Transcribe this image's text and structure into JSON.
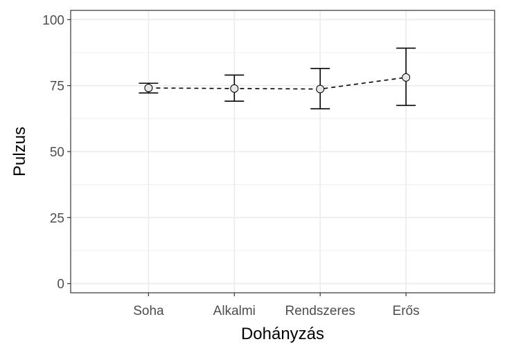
{
  "chart_data": {
    "type": "line",
    "title": "",
    "xlabel": "Dohányzás",
    "ylabel": "Pulzus",
    "categories": [
      "Soha",
      "Alkalmi",
      "Rendszeres",
      "Erős"
    ],
    "series": [
      {
        "values": [
          74.1,
          73.9,
          73.7,
          78.1
        ],
        "error_low": [
          72.2,
          69.1,
          66.2,
          67.5
        ],
        "error_high": [
          75.9,
          79.0,
          81.5,
          89.2
        ]
      }
    ],
    "ylim": [
      -3.5,
      103.5
    ],
    "yticks": [
      0,
      25,
      50,
      75,
      100
    ],
    "grid": true,
    "legend": "none",
    "colors": {
      "line": "#000000",
      "point_fill": "#e6e6e6",
      "grid": "#ebebeb",
      "panel_border": "#333333",
      "tick_text": "#4d4d4d"
    }
  }
}
